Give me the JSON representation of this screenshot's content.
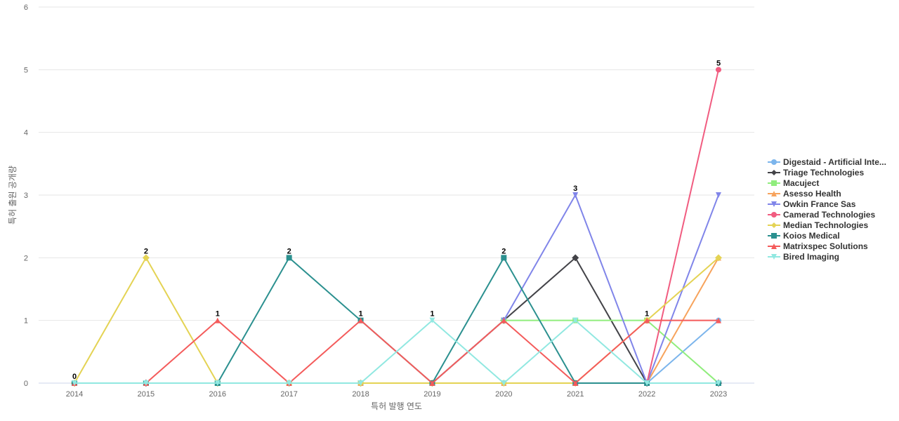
{
  "chart_data": {
    "type": "line",
    "xlabel": "특허 발행 연도",
    "ylabel": "특허 출원 공개량",
    "ylim": [
      0,
      6
    ],
    "yticks": [
      0,
      1,
      2,
      3,
      4,
      5,
      6
    ],
    "x": [
      "2014",
      "2015",
      "2016",
      "2017",
      "2018",
      "2019",
      "2020",
      "2021",
      "2022",
      "2023"
    ],
    "grid": true,
    "legend_position": "right",
    "series": [
      {
        "name": "Digestaid - Artificial Inte...",
        "color": "#7cb5ec",
        "marker": "circle",
        "values": [
          0,
          0,
          0,
          0,
          0,
          0,
          0,
          0,
          0,
          1
        ]
      },
      {
        "name": "Triage Technologies",
        "color": "#434348",
        "marker": "diamond",
        "values": [
          0,
          0,
          0,
          0,
          0,
          0,
          1,
          2,
          0,
          0
        ]
      },
      {
        "name": "Macuject",
        "color": "#90ed7d",
        "marker": "square",
        "values": [
          0,
          0,
          0,
          0,
          0,
          0,
          1,
          1,
          1,
          0
        ]
      },
      {
        "name": "Asesso Health",
        "color": "#f7a35c",
        "marker": "triangle",
        "values": [
          0,
          0,
          0,
          0,
          0,
          0,
          0,
          0,
          0,
          2
        ]
      },
      {
        "name": "Owkin France Sas",
        "color": "#8085e9",
        "marker": "triangle-down",
        "values": [
          0,
          0,
          0,
          0,
          0,
          0,
          1,
          3,
          0,
          3
        ]
      },
      {
        "name": "Camerad Technologies",
        "color": "#f15c80",
        "marker": "circle",
        "values": [
          0,
          0,
          0,
          0,
          0,
          0,
          0,
          0,
          0,
          5
        ]
      },
      {
        "name": "Median Technologies",
        "color": "#e4d354",
        "marker": "diamond",
        "values": [
          0,
          2,
          0,
          0,
          0,
          0,
          0,
          0,
          1,
          2
        ]
      },
      {
        "name": "Koios Medical",
        "color": "#2b908f",
        "marker": "square",
        "values": [
          0,
          0,
          0,
          2,
          1,
          0,
          2,
          0,
          0,
          0
        ]
      },
      {
        "name": "Matrixspec Solutions",
        "color": "#f45b5b",
        "marker": "triangle",
        "values": [
          0,
          0,
          1,
          0,
          1,
          0,
          1,
          0,
          1,
          1
        ]
      },
      {
        "name": "Bired Imaging",
        "color": "#91e8e1",
        "marker": "triangle-down",
        "values": [
          0,
          0,
          0,
          0,
          0,
          1,
          0,
          1,
          0,
          0
        ]
      }
    ],
    "data_labels": [
      "0",
      "2",
      "1",
      "2",
      "1",
      "1",
      "2",
      "3",
      "1",
      "5"
    ]
  }
}
